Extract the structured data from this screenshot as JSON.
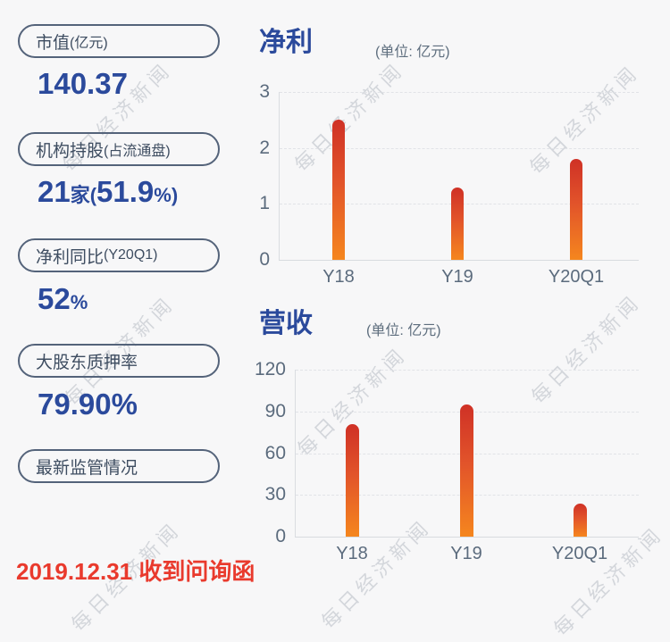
{
  "watermark": {
    "text": "每日经济新闻"
  },
  "stats": [
    {
      "label": "市值",
      "paren": "(亿元)",
      "v1": "140.37",
      "v2": "",
      "v3": "",
      "v4": ""
    },
    {
      "label": "机构持股",
      "paren": "(占流通盘)",
      "v1": "21",
      "v2": "家(",
      "v3": "51.9",
      "v4": "%)"
    },
    {
      "label": "净利同比",
      "paren": "(Y20Q1)",
      "v1": "52",
      "v2": "%",
      "v3": "",
      "v4": ""
    },
    {
      "label": "大股东质押率",
      "paren": "",
      "v1": "79.90%",
      "v2": "",
      "v3": "",
      "v4": ""
    },
    {
      "label": "最新监管情况",
      "paren": ""
    }
  ],
  "note": {
    "text": "2019.12.31 收到问询函",
    "color": "#e93a2d"
  },
  "colors": {
    "value_blue": "#2b4a9c",
    "pill_border": "#54637a",
    "axis_text": "#5b6b7d",
    "note_red": "#e93a2d",
    "bar_top": "#cf3126",
    "bar_bottom": "#f5861e"
  },
  "chart_data": [
    {
      "type": "bar",
      "title": "净利",
      "unit_label": "(单位: 亿元)",
      "categories": [
        "Y18",
        "Y19",
        "Y20Q1"
      ],
      "values": [
        2.5,
        1.3,
        1.8
      ],
      "ylim": [
        0,
        3
      ],
      "yticks": [
        0,
        1,
        2,
        3
      ],
      "xlabel": "",
      "ylabel": "",
      "grid": "dashed-horizontal",
      "legend": "none"
    },
    {
      "type": "bar",
      "title": "营收",
      "unit_label": "(单位: 亿元)",
      "categories": [
        "Y18",
        "Y19",
        "Y20Q1"
      ],
      "values": [
        81,
        95,
        24
      ],
      "ylim": [
        0,
        120
      ],
      "yticks": [
        0,
        30,
        60,
        90,
        120
      ],
      "xlabel": "",
      "ylabel": "",
      "grid": "dashed-horizontal",
      "legend": "none"
    }
  ]
}
